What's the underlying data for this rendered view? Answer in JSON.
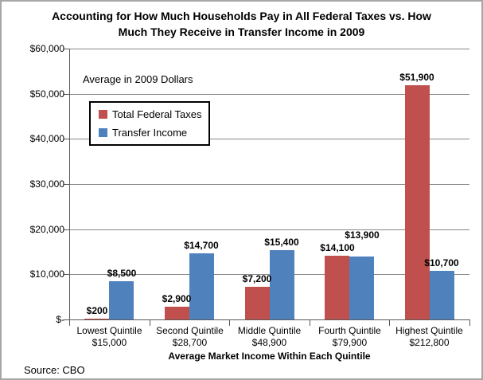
{
  "header": {
    "title_line1": "Accounting for How Much Households Pay in All Federal Taxes vs. How",
    "title_line2": "Much They Receive in Transfer Income in 2009"
  },
  "annotation": "Average in 2009  Dollars",
  "source": "Source: CBO",
  "chart_data": {
    "type": "bar",
    "title": "Accounting for How Much Households Pay in All Federal Taxes vs. How Much They Receive in Transfer Income in 2009",
    "categories": [
      "Lowest Quintile",
      "Second Quintile",
      "Middle Quintile",
      "Fourth Quintile",
      "Highest Quintile"
    ],
    "category_sublabels": [
      "$15,000",
      "$28,700",
      "$48,900",
      "$79,900",
      "$212,800"
    ],
    "series": [
      {
        "name": "Total Federal Taxes",
        "color": "#C0504D",
        "values": [
          200,
          2900,
          7200,
          14100,
          51900
        ],
        "labels": [
          "$200",
          "$2,900",
          "$7,200",
          "$14,100",
          "$51,900"
        ]
      },
      {
        "name": "Transfer Income",
        "color": "#4F81BD",
        "values": [
          8500,
          14700,
          15400,
          13900,
          10700
        ],
        "labels": [
          "$8,500",
          "$14,700",
          "$15,400",
          "$13,900",
          "$10,700"
        ]
      }
    ],
    "xlabel": "Average Market Income Within Each Quintile",
    "ylabel": "",
    "ylim": [
      0,
      60000
    ],
    "y_ticks": [
      0,
      10000,
      20000,
      30000,
      40000,
      50000,
      60000
    ],
    "y_tick_labels": [
      "$-",
      "$10,000",
      "$20,000",
      "$30,000",
      "$40,000",
      "$50,000",
      "$60,000"
    ],
    "grid": true,
    "legend_position": "upper-left-inside",
    "label_dy": [
      [
        0,
        0,
        0,
        0,
        0
      ],
      [
        0,
        0,
        0,
        17,
        0
      ]
    ]
  }
}
